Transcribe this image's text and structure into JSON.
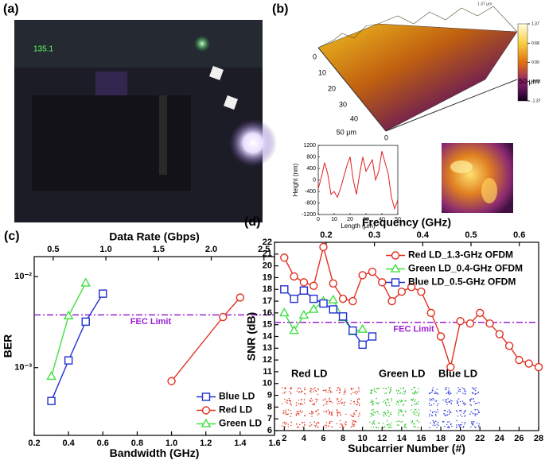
{
  "chart_data": [
    {
      "type": "image",
      "label": "(a)",
      "display_text": "135.1"
    },
    {
      "type": "surface",
      "label": "(b)",
      "top_label": "1.37 μm",
      "depth_labels": [
        "0",
        "10",
        "20",
        "30",
        "40",
        "50 μm"
      ],
      "width_labels": [
        "0",
        "50 μm"
      ],
      "colorbar_lim": [
        -1.37,
        1.37
      ],
      "colorbar_ticks": [
        1.37,
        0.68,
        {
          "value": 0,
          "label": "0.00"
        },
        -0.68,
        -1.37
      ]
    },
    {
      "type": "line",
      "xlabel": "Length (μm)",
      "ylabel": "Height (nm)",
      "xlim": [
        0,
        50
      ],
      "xticks": [
        0,
        10,
        20,
        30,
        40,
        50
      ],
      "ylim": [
        -1200,
        1200
      ],
      "yticks": [
        -1200,
        -800,
        -400,
        0,
        400,
        800,
        1200
      ],
      "series": [
        {
          "color": "#e02020",
          "marker": "none",
          "x": [
            0,
            2,
            4,
            6,
            8,
            10,
            12,
            14,
            16,
            18,
            20,
            22,
            24,
            26,
            28,
            30,
            32,
            34,
            36,
            38,
            40,
            42,
            44,
            46,
            48,
            50
          ],
          "values": [
            -300,
            100,
            600,
            200,
            -500,
            -400,
            -600,
            -300,
            100,
            500,
            800,
            0,
            -500,
            200,
            800,
            300,
            500,
            700,
            0,
            300,
            1000,
            600,
            200,
            -600,
            -1000,
            -700
          ]
        }
      ]
    },
    {
      "type": "line",
      "label": "(c)",
      "xlabel": "Bandwidth (GHz)",
      "ylabel": "BER",
      "x2label": "Data Rate (Gbps)",
      "xlim": [
        0.2,
        1.6
      ],
      "xticks": [
        0.2,
        0.4,
        0.6,
        0.8,
        {
          "value": 1.0,
          "label": "1.0"
        },
        1.2,
        1.4,
        1.6
      ],
      "x2lim": [
        0.32,
        2.6
      ],
      "x2ticks": [
        0.5,
        {
          "value": 1.0,
          "label": "1.0"
        },
        1.5,
        {
          "value": 2.0,
          "label": "2.0"
        },
        2.5
      ],
      "log_y": true,
      "ylim": [
        0.00018,
        0.0166
      ],
      "yticks": [
        {
          "value": 0.001,
          "label": "10⁻³"
        },
        {
          "value": 0.01,
          "label": "10⁻²"
        }
      ],
      "hline": {
        "value": 0.0038,
        "label": "FEC Limit",
        "color": "#9a20d0"
      },
      "legend": "lower right",
      "series": [
        {
          "name": "Blue LD",
          "color": "#2030d0",
          "marker": "square",
          "x": [
            0.3,
            0.4,
            0.5,
            0.6
          ],
          "values": [
            0.00043,
            0.0012,
            0.0032,
            0.0065
          ]
        },
        {
          "name": "Red LD",
          "color": "#e03020",
          "marker": "circle",
          "x": [
            1.0,
            1.3,
            1.4
          ],
          "values": [
            0.00071,
            0.0036,
            0.0059
          ]
        },
        {
          "name": "Green LD",
          "color": "#40e040",
          "marker": "triangle",
          "x": [
            0.3,
            0.4,
            0.5
          ],
          "values": [
            0.0008,
            0.0037,
            0.0085
          ]
        }
      ]
    },
    {
      "type": "line",
      "label": "(d)",
      "xlabel": "Subcarrier Number (#)",
      "ylabel": "SNR (dB)",
      "x2label": "Frequency (GHz)",
      "xlim": [
        1,
        28
      ],
      "xticks": [
        2,
        4,
        6,
        8,
        10,
        12,
        14,
        16,
        18,
        20,
        22,
        24,
        26,
        28
      ],
      "x2lim": [
        0.093,
        0.64
      ],
      "x2ticks": [
        0.2,
        0.3,
        0.4,
        0.5,
        0.6
      ],
      "ylim": [
        6,
        22
      ],
      "yticks": [
        6,
        7,
        8,
        9,
        10,
        11,
        12,
        13,
        14,
        15,
        16,
        17,
        18,
        19,
        20,
        21,
        22
      ],
      "hline": {
        "value": 15.2,
        "label": "FEC Limit",
        "color": "#9a20d0"
      },
      "legend": "upper right",
      "annotations": [
        "Red LD",
        "Green LD",
        "Blue LD"
      ],
      "series": [
        {
          "name": "Red LD_1.3-GHz OFDM",
          "color": "#e03020",
          "marker": "circle",
          "x": [
            2,
            3,
            4,
            5,
            6,
            7,
            8,
            9,
            10,
            11,
            12,
            13,
            14,
            15,
            16,
            17,
            18,
            19,
            20,
            21,
            22,
            23,
            24,
            25,
            26,
            27,
            28
          ],
          "values": [
            20.7,
            19.1,
            18.6,
            18.3,
            21.6,
            18.5,
            17.2,
            17.0,
            19.2,
            19.5,
            18.6,
            17.0,
            17.8,
            18.2,
            17.8,
            16.0,
            14.0,
            11.4,
            15.3,
            15.1,
            16.0,
            15.1,
            14.2,
            13.2,
            12.0,
            11.7,
            11.4
          ]
        },
        {
          "name": "Green LD_0.4-GHz OFDM",
          "color": "#40e040",
          "marker": "triangle",
          "x": [
            2,
            3,
            4,
            5,
            6,
            7,
            8,
            9,
            10
          ],
          "values": [
            16.0,
            14.5,
            15.8,
            16.3,
            17.0,
            17.1,
            15.6,
            14.4,
            14.6
          ]
        },
        {
          "name": "Blue LD_0.5-GHz OFDM",
          "color": "#2030d0",
          "marker": "square",
          "x": [
            2,
            3,
            4,
            5,
            6,
            7,
            8,
            9,
            10,
            11
          ],
          "values": [
            18.0,
            17.2,
            17.9,
            17.2,
            16.8,
            16.3,
            15.7,
            14.5,
            13.3,
            14.0
          ]
        }
      ]
    }
  ]
}
